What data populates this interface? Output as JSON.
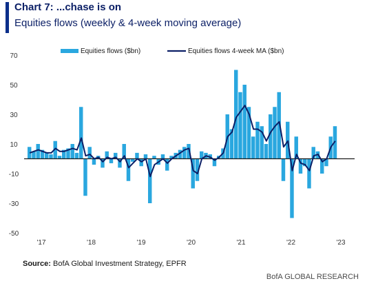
{
  "header": {
    "title": "Chart 7: ...chase is on",
    "subtitle": "Equities flows (weekly & 4-week moving average)"
  },
  "footer": {
    "source_label": "Source:",
    "source_text": "BofA Global Investment Strategy, EPFR",
    "brand": "BofA GLOBAL RESEARCH"
  },
  "colors": {
    "bars": "#2aa7df",
    "ma_line": "#0b1f66",
    "accent": "#0b2f8a"
  },
  "chart_data": {
    "type": "bar",
    "title": "Equities flows (weekly & 4-week moving average)",
    "ylim": [
      -50,
      70
    ],
    "yticks": [
      70,
      50,
      30,
      10,
      -10,
      -30,
      -50
    ],
    "xticks": [
      "'17",
      "'18",
      "'19",
      "'20",
      "'21",
      "'22",
      "'23"
    ],
    "legend": {
      "position": "top",
      "entries": [
        "Equities flows ($bn)",
        "Equities flows 4-week MA ($bn)"
      ]
    },
    "series": [
      {
        "name": "Equities flows ($bn)",
        "kind": "bar",
        "x": [
          "2017-01",
          "2017-02",
          "2017-03",
          "2017-04",
          "2017-05",
          "2017-06",
          "2017-07",
          "2017-08",
          "2017-09",
          "2017-10",
          "2017-11",
          "2017-12",
          "2018-01",
          "2018-02",
          "2018-03",
          "2018-04",
          "2018-05",
          "2018-06",
          "2018-07",
          "2018-08",
          "2018-09",
          "2018-10",
          "2018-11",
          "2018-12",
          "2019-01",
          "2019-02",
          "2019-03",
          "2019-04",
          "2019-05",
          "2019-06",
          "2019-07",
          "2019-08",
          "2019-09",
          "2019-10",
          "2019-11",
          "2019-12",
          "2020-01",
          "2020-02",
          "2020-03",
          "2020-04",
          "2020-05",
          "2020-06",
          "2020-07",
          "2020-08",
          "2020-09",
          "2020-10",
          "2020-11",
          "2020-12",
          "2021-01",
          "2021-02",
          "2021-03",
          "2021-04",
          "2021-05",
          "2021-06",
          "2021-07",
          "2021-08",
          "2021-09",
          "2021-10",
          "2021-11",
          "2021-12",
          "2022-01",
          "2022-02",
          "2022-03",
          "2022-04",
          "2022-05",
          "2022-06",
          "2022-07",
          "2022-08",
          "2022-09",
          "2022-10",
          "2022-11",
          "2022-12"
        ],
        "values": [
          8,
          5,
          10,
          6,
          4,
          3,
          12,
          2,
          6,
          7,
          10,
          4,
          35,
          -25,
          8,
          -4,
          2,
          -6,
          5,
          -3,
          4,
          -6,
          10,
          -15,
          -2,
          4,
          -5,
          3,
          -30,
          2,
          -4,
          3,
          -8,
          2,
          4,
          6,
          8,
          10,
          -20,
          -15,
          5,
          4,
          3,
          -5,
          2,
          7,
          30,
          20,
          60,
          45,
          50,
          35,
          15,
          25,
          22,
          10,
          30,
          35,
          45,
          -15,
          25,
          -40,
          15,
          -10,
          -5,
          -20,
          8,
          5,
          -10,
          -5,
          15,
          22
        ]
      },
      {
        "name": "Equities flows 4-week MA ($bn)",
        "kind": "line",
        "x": [
          "2017-01",
          "2017-02",
          "2017-03",
          "2017-04",
          "2017-05",
          "2017-06",
          "2017-07",
          "2017-08",
          "2017-09",
          "2017-10",
          "2017-11",
          "2017-12",
          "2018-01",
          "2018-02",
          "2018-03",
          "2018-04",
          "2018-05",
          "2018-06",
          "2018-07",
          "2018-08",
          "2018-09",
          "2018-10",
          "2018-11",
          "2018-12",
          "2019-01",
          "2019-02",
          "2019-03",
          "2019-04",
          "2019-05",
          "2019-06",
          "2019-07",
          "2019-08",
          "2019-09",
          "2019-10",
          "2019-11",
          "2019-12",
          "2020-01",
          "2020-02",
          "2020-03",
          "2020-04",
          "2020-05",
          "2020-06",
          "2020-07",
          "2020-08",
          "2020-09",
          "2020-10",
          "2020-11",
          "2020-12",
          "2021-01",
          "2021-02",
          "2021-03",
          "2021-04",
          "2021-05",
          "2021-06",
          "2021-07",
          "2021-08",
          "2021-09",
          "2021-10",
          "2021-11",
          "2021-12",
          "2022-01",
          "2022-02",
          "2022-03",
          "2022-04",
          "2022-05",
          "2022-06",
          "2022-07",
          "2022-08",
          "2022-09",
          "2022-10",
          "2022-11",
          "2022-12"
        ],
        "values": [
          4,
          5,
          6,
          5,
          4,
          4,
          7,
          5,
          5,
          6,
          7,
          6,
          14,
          2,
          3,
          0,
          1,
          -2,
          1,
          0,
          1,
          -2,
          2,
          -6,
          -3,
          0,
          -2,
          0,
          -12,
          -4,
          -2,
          0,
          -3,
          0,
          2,
          4,
          6,
          7,
          -8,
          -10,
          0,
          2,
          1,
          -1,
          1,
          4,
          15,
          18,
          28,
          32,
          36,
          30,
          20,
          20,
          18,
          12,
          18,
          22,
          25,
          8,
          12,
          -8,
          3,
          -3,
          -4,
          -8,
          2,
          3,
          -2,
          0,
          8,
          12
        ]
      }
    ]
  }
}
